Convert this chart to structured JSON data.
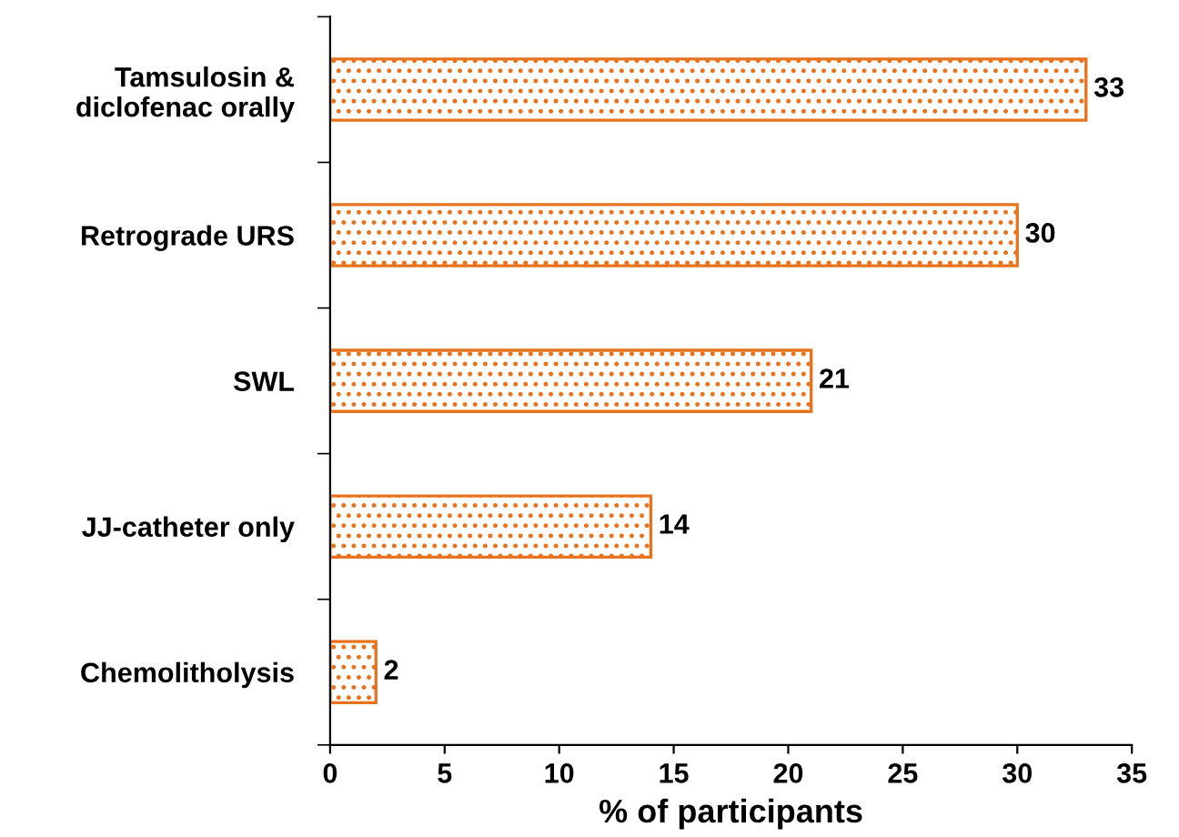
{
  "chart_data": {
    "type": "bar",
    "orientation": "horizontal",
    "xlabel": "% of participants",
    "categories": [
      "Tamsulosin &\ndiclofenac orally",
      "Retrograde URS",
      "SWL",
      "JJ-catheter only",
      "Chemolitholysis"
    ],
    "values": [
      33,
      30,
      21,
      14,
      2
    ],
    "color": "#e8731e",
    "data_labels": true,
    "xlim": [
      0,
      35
    ],
    "xticks": [
      0,
      5,
      10,
      15,
      20,
      25,
      30,
      35
    ],
    "grid": false,
    "legend": false
  }
}
